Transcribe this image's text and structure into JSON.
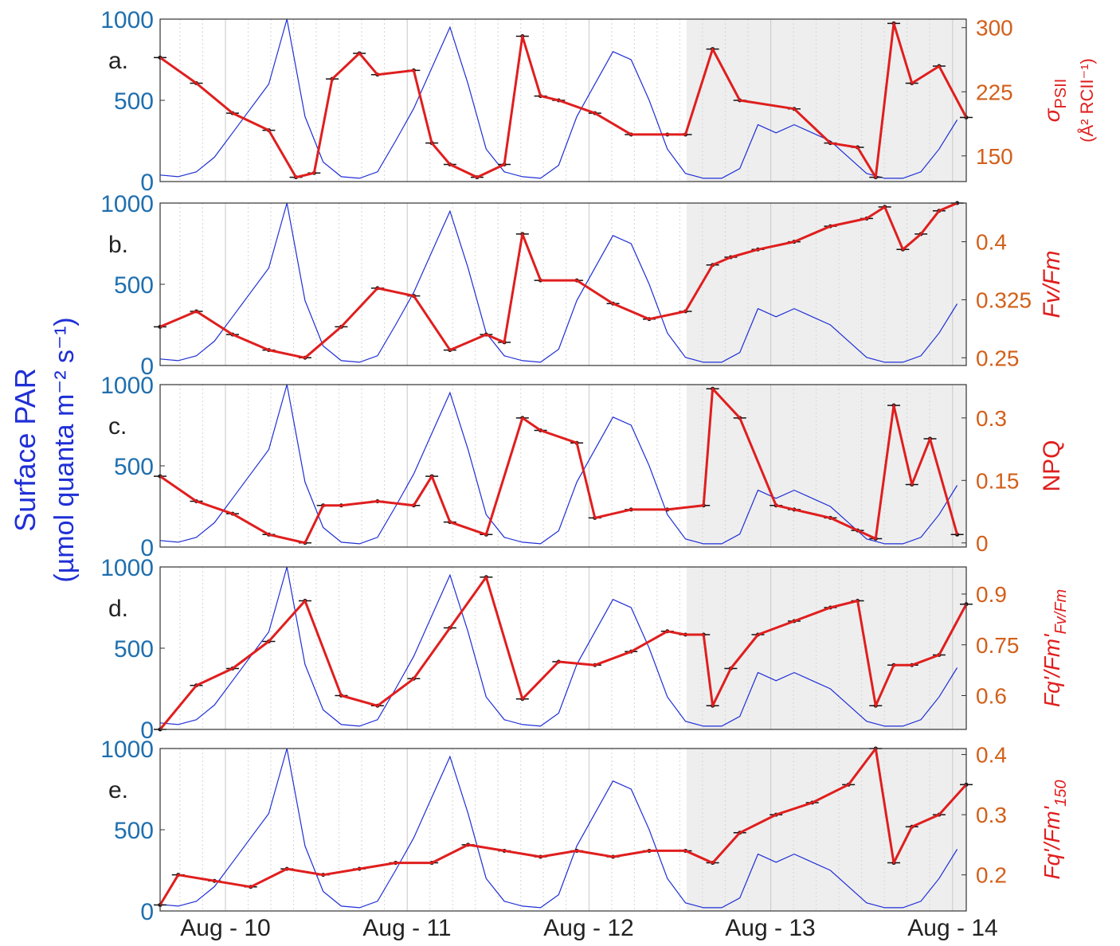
{
  "figure": {
    "left_axis_label_line1": "Surface PAR",
    "left_axis_label_line2": "(µmol quanta m⁻² s⁻¹)",
    "colors": {
      "par_line": "#1f2fd6",
      "par_axis": "#1f6fae",
      "fit_line": "#e01e1e",
      "right_axis": "#d2601a",
      "right_label": "#e01e1e",
      "points": "#111111",
      "shade": "#eeeeee"
    },
    "x_tick_labels": [
      "Aug - 10",
      "Aug - 11",
      "Aug - 12",
      "Aug - 13",
      "Aug - 14"
    ],
    "shaded_period": "from Aug 12 ~14:00 to end of record"
  },
  "chart_data": [
    {
      "type": "line",
      "panel": "a.",
      "ylabel_right": "σ PSII (Å² RCII⁻¹)",
      "ylabel_right_main": "σ",
      "ylabel_right_sub": "PSII",
      "ylabel_right_units": "(Å² RCII⁻¹)",
      "left_ylim": [
        0,
        1000
      ],
      "left_ticks": [
        "0",
        "500",
        "1000"
      ],
      "right_ylim": [
        120,
        310
      ],
      "right_ticks": [
        "150",
        "225",
        "300"
      ],
      "series": [
        {
          "name": "Surface PAR",
          "axis": "left",
          "x_days": [
            0,
            0.1,
            0.2,
            0.3,
            0.4,
            0.5,
            0.6,
            0.7,
            0.8,
            0.9,
            1.0,
            1.1,
            1.2,
            1.3,
            1.4,
            1.5,
            1.6,
            1.7,
            1.8,
            1.9,
            2.0,
            2.1,
            2.2,
            2.3,
            2.4,
            2.5,
            2.6,
            2.7,
            2.8,
            2.9,
            3.0,
            3.1,
            3.2,
            3.3,
            3.4,
            3.5,
            3.6,
            3.7,
            3.8,
            3.9,
            4.0,
            4.1,
            4.2,
            4.3,
            4.4
          ],
          "values": [
            40,
            30,
            60,
            150,
            300,
            450,
            600,
            1000,
            400,
            120,
            30,
            20,
            60,
            250,
            450,
            700,
            950,
            600,
            200,
            60,
            30,
            20,
            100,
            400,
            600,
            800,
            750,
            500,
            200,
            50,
            20,
            20,
            80,
            350,
            300,
            350,
            300,
            250,
            150,
            50,
            20,
            20,
            60,
            200,
            380
          ]
        },
        {
          "name": "σPSII fit",
          "axis": "right",
          "x_days": [
            0,
            0.2,
            0.4,
            0.6,
            0.75,
            0.85,
            0.95,
            1.1,
            1.2,
            1.4,
            1.5,
            1.6,
            1.75,
            1.9,
            2.0,
            2.1,
            2.2,
            2.4,
            2.6,
            2.8,
            2.9,
            3.05,
            3.2,
            3.5,
            3.7,
            3.85,
            3.95,
            4.05,
            4.15,
            4.3,
            4.45
          ],
          "values": [
            265,
            235,
            200,
            180,
            125,
            130,
            240,
            270,
            245,
            250,
            165,
            140,
            125,
            140,
            290,
            220,
            215,
            200,
            175,
            175,
            175,
            275,
            215,
            205,
            165,
            160,
            125,
            305,
            235,
            255,
            195
          ]
        }
      ]
    },
    {
      "type": "line",
      "panel": "b.",
      "ylabel_right": "Fv/Fm",
      "left_ylim": [
        0,
        1000
      ],
      "left_ticks": [
        "0",
        "500",
        "1000"
      ],
      "right_ylim": [
        0.24,
        0.45
      ],
      "right_ticks": [
        "0.25",
        "0.325",
        "0.4"
      ],
      "series": [
        {
          "name": "Surface PAR",
          "axis": "left",
          "x_days": [
            0,
            0.1,
            0.2,
            0.3,
            0.4,
            0.5,
            0.6,
            0.7,
            0.8,
            0.9,
            1.0,
            1.1,
            1.2,
            1.3,
            1.4,
            1.5,
            1.6,
            1.7,
            1.8,
            1.9,
            2.0,
            2.1,
            2.2,
            2.3,
            2.4,
            2.5,
            2.6,
            2.7,
            2.8,
            2.9,
            3.0,
            3.1,
            3.2,
            3.3,
            3.4,
            3.5,
            3.6,
            3.7,
            3.8,
            3.9,
            4.0,
            4.1,
            4.2,
            4.3,
            4.4
          ],
          "values": [
            40,
            30,
            60,
            150,
            300,
            450,
            600,
            1000,
            400,
            120,
            30,
            20,
            60,
            250,
            450,
            700,
            950,
            600,
            200,
            60,
            30,
            20,
            100,
            400,
            600,
            800,
            750,
            500,
            200,
            50,
            20,
            20,
            80,
            350,
            300,
            350,
            300,
            250,
            150,
            50,
            20,
            20,
            60,
            200,
            380
          ]
        },
        {
          "name": "Fv/Fm fit",
          "axis": "right",
          "x_days": [
            0,
            0.2,
            0.4,
            0.6,
            0.8,
            1.0,
            1.2,
            1.4,
            1.6,
            1.8,
            1.9,
            2.0,
            2.1,
            2.3,
            2.5,
            2.7,
            2.9,
            3.05,
            3.15,
            3.3,
            3.5,
            3.7,
            3.9,
            4.0,
            4.1,
            4.2,
            4.3,
            4.4
          ],
          "values": [
            0.29,
            0.31,
            0.28,
            0.26,
            0.25,
            0.29,
            0.34,
            0.33,
            0.26,
            0.28,
            0.27,
            0.41,
            0.35,
            0.35,
            0.32,
            0.3,
            0.31,
            0.37,
            0.38,
            0.39,
            0.4,
            0.42,
            0.43,
            0.445,
            0.39,
            0.41,
            0.44,
            0.45
          ]
        }
      ]
    },
    {
      "type": "line",
      "panel": "c.",
      "ylabel_right": "NPQ",
      "left_ylim": [
        0,
        1000
      ],
      "left_ticks": [
        "0",
        "500",
        "1000"
      ],
      "right_ylim": [
        -0.01,
        0.38
      ],
      "right_ticks": [
        "0",
        "0.15",
        "0.3"
      ],
      "series": [
        {
          "name": "Surface PAR",
          "axis": "left",
          "x_days": [
            0,
            0.1,
            0.2,
            0.3,
            0.4,
            0.5,
            0.6,
            0.7,
            0.8,
            0.9,
            1.0,
            1.1,
            1.2,
            1.3,
            1.4,
            1.5,
            1.6,
            1.7,
            1.8,
            1.9,
            2.0,
            2.1,
            2.2,
            2.3,
            2.4,
            2.5,
            2.6,
            2.7,
            2.8,
            2.9,
            3.0,
            3.1,
            3.2,
            3.3,
            3.4,
            3.5,
            3.6,
            3.7,
            3.8,
            3.9,
            4.0,
            4.1,
            4.2,
            4.3,
            4.4
          ],
          "values": [
            40,
            30,
            60,
            150,
            300,
            450,
            600,
            1000,
            400,
            120,
            30,
            20,
            60,
            250,
            450,
            700,
            950,
            600,
            200,
            60,
            30,
            20,
            100,
            400,
            600,
            800,
            750,
            500,
            200,
            50,
            20,
            20,
            80,
            350,
            300,
            350,
            300,
            250,
            150,
            50,
            20,
            20,
            60,
            200,
            380
          ]
        },
        {
          "name": "NPQ fit",
          "axis": "right",
          "x_days": [
            0,
            0.2,
            0.4,
            0.6,
            0.8,
            0.9,
            1.0,
            1.2,
            1.4,
            1.5,
            1.6,
            1.8,
            2.0,
            2.1,
            2.3,
            2.4,
            2.6,
            2.8,
            3.0,
            3.05,
            3.2,
            3.4,
            3.5,
            3.7,
            3.85,
            3.95,
            4.05,
            4.15,
            4.25,
            4.4
          ],
          "values": [
            0.16,
            0.1,
            0.07,
            0.02,
            0.0,
            0.09,
            0.09,
            0.1,
            0.09,
            0.16,
            0.05,
            0.02,
            0.3,
            0.27,
            0.24,
            0.06,
            0.08,
            0.08,
            0.09,
            0.37,
            0.3,
            0.09,
            0.08,
            0.06,
            0.03,
            0.01,
            0.33,
            0.14,
            0.25,
            0.02
          ]
        }
      ]
    },
    {
      "type": "line",
      "panel": "d.",
      "ylabel_right": "Fq'/Fm'/Fv/Fm",
      "ylabel_right_main": "Fq'/Fm'",
      "ylabel_right_sub": "Fv/Fm",
      "left_ylim": [
        0,
        1000
      ],
      "left_ticks": [
        "0",
        "500",
        "1000"
      ],
      "right_ylim": [
        0.5,
        0.98
      ],
      "right_ticks": [
        "0.6",
        "0.75",
        "0.9"
      ],
      "series": [
        {
          "name": "Surface PAR",
          "axis": "left",
          "x_days": [
            0,
            0.1,
            0.2,
            0.3,
            0.4,
            0.5,
            0.6,
            0.7,
            0.8,
            0.9,
            1.0,
            1.1,
            1.2,
            1.3,
            1.4,
            1.5,
            1.6,
            1.7,
            1.8,
            1.9,
            2.0,
            2.1,
            2.2,
            2.3,
            2.4,
            2.5,
            2.6,
            2.7,
            2.8,
            2.9,
            3.0,
            3.1,
            3.2,
            3.3,
            3.4,
            3.5,
            3.6,
            3.7,
            3.8,
            3.9,
            4.0,
            4.1,
            4.2,
            4.3,
            4.4
          ],
          "values": [
            40,
            30,
            60,
            150,
            300,
            450,
            600,
            1000,
            400,
            120,
            30,
            20,
            60,
            250,
            450,
            700,
            950,
            600,
            200,
            60,
            30,
            20,
            100,
            400,
            600,
            800,
            750,
            500,
            200,
            50,
            20,
            20,
            80,
            350,
            300,
            350,
            300,
            250,
            150,
            50,
            20,
            20,
            60,
            200,
            380
          ]
        },
        {
          "name": "Fq'/Fm'/Fv/Fm fit",
          "axis": "right",
          "x_days": [
            0,
            0.2,
            0.4,
            0.6,
            0.8,
            1.0,
            1.2,
            1.4,
            1.6,
            1.8,
            2.0,
            2.2,
            2.4,
            2.6,
            2.8,
            2.9,
            3.0,
            3.05,
            3.15,
            3.3,
            3.5,
            3.7,
            3.85,
            3.95,
            4.05,
            4.15,
            4.3,
            4.45
          ],
          "values": [
            0.5,
            0.63,
            0.68,
            0.76,
            0.88,
            0.6,
            0.57,
            0.65,
            0.8,
            0.95,
            0.59,
            0.7,
            0.69,
            0.73,
            0.79,
            0.78,
            0.78,
            0.57,
            0.68,
            0.78,
            0.82,
            0.86,
            0.88,
            0.57,
            0.69,
            0.69,
            0.72,
            0.87
          ]
        }
      ]
    },
    {
      "type": "line",
      "panel": "e.",
      "ylabel_right": "Fq'/Fm'150",
      "ylabel_right_main": "Fq'/Fm'",
      "ylabel_right_sub": "150",
      "left_ylim": [
        0,
        1000
      ],
      "left_ticks": [
        "0",
        "500",
        "1000"
      ],
      "right_ylim": [
        0.14,
        0.41
      ],
      "right_ticks": [
        "0.2",
        "0.3",
        "0.4"
      ],
      "series": [
        {
          "name": "Surface PAR",
          "axis": "left",
          "x_days": [
            0,
            0.1,
            0.2,
            0.3,
            0.4,
            0.5,
            0.6,
            0.7,
            0.8,
            0.9,
            1.0,
            1.1,
            1.2,
            1.3,
            1.4,
            1.5,
            1.6,
            1.7,
            1.8,
            1.9,
            2.0,
            2.1,
            2.2,
            2.3,
            2.4,
            2.5,
            2.6,
            2.7,
            2.8,
            2.9,
            3.0,
            3.1,
            3.2,
            3.3,
            3.4,
            3.5,
            3.6,
            3.7,
            3.8,
            3.9,
            4.0,
            4.1,
            4.2,
            4.3,
            4.4
          ],
          "values": [
            40,
            30,
            60,
            150,
            300,
            450,
            600,
            1000,
            400,
            120,
            30,
            20,
            60,
            250,
            450,
            700,
            950,
            600,
            200,
            60,
            30,
            20,
            100,
            400,
            600,
            800,
            750,
            500,
            200,
            50,
            20,
            20,
            80,
            350,
            300,
            350,
            300,
            250,
            150,
            50,
            20,
            20,
            60,
            200,
            380
          ]
        },
        {
          "name": "Fq'/Fm'150 fit",
          "axis": "right",
          "x_days": [
            0,
            0.1,
            0.3,
            0.5,
            0.7,
            0.9,
            1.1,
            1.3,
            1.5,
            1.7,
            1.9,
            2.1,
            2.3,
            2.5,
            2.7,
            2.9,
            3.05,
            3.2,
            3.4,
            3.6,
            3.8,
            3.95,
            4.05,
            4.15,
            4.3,
            4.45
          ],
          "values": [
            0.15,
            0.2,
            0.19,
            0.18,
            0.21,
            0.2,
            0.21,
            0.22,
            0.22,
            0.25,
            0.24,
            0.23,
            0.24,
            0.23,
            0.24,
            0.24,
            0.22,
            0.27,
            0.3,
            0.32,
            0.35,
            0.41,
            0.22,
            0.28,
            0.3,
            0.35
          ]
        }
      ]
    }
  ]
}
